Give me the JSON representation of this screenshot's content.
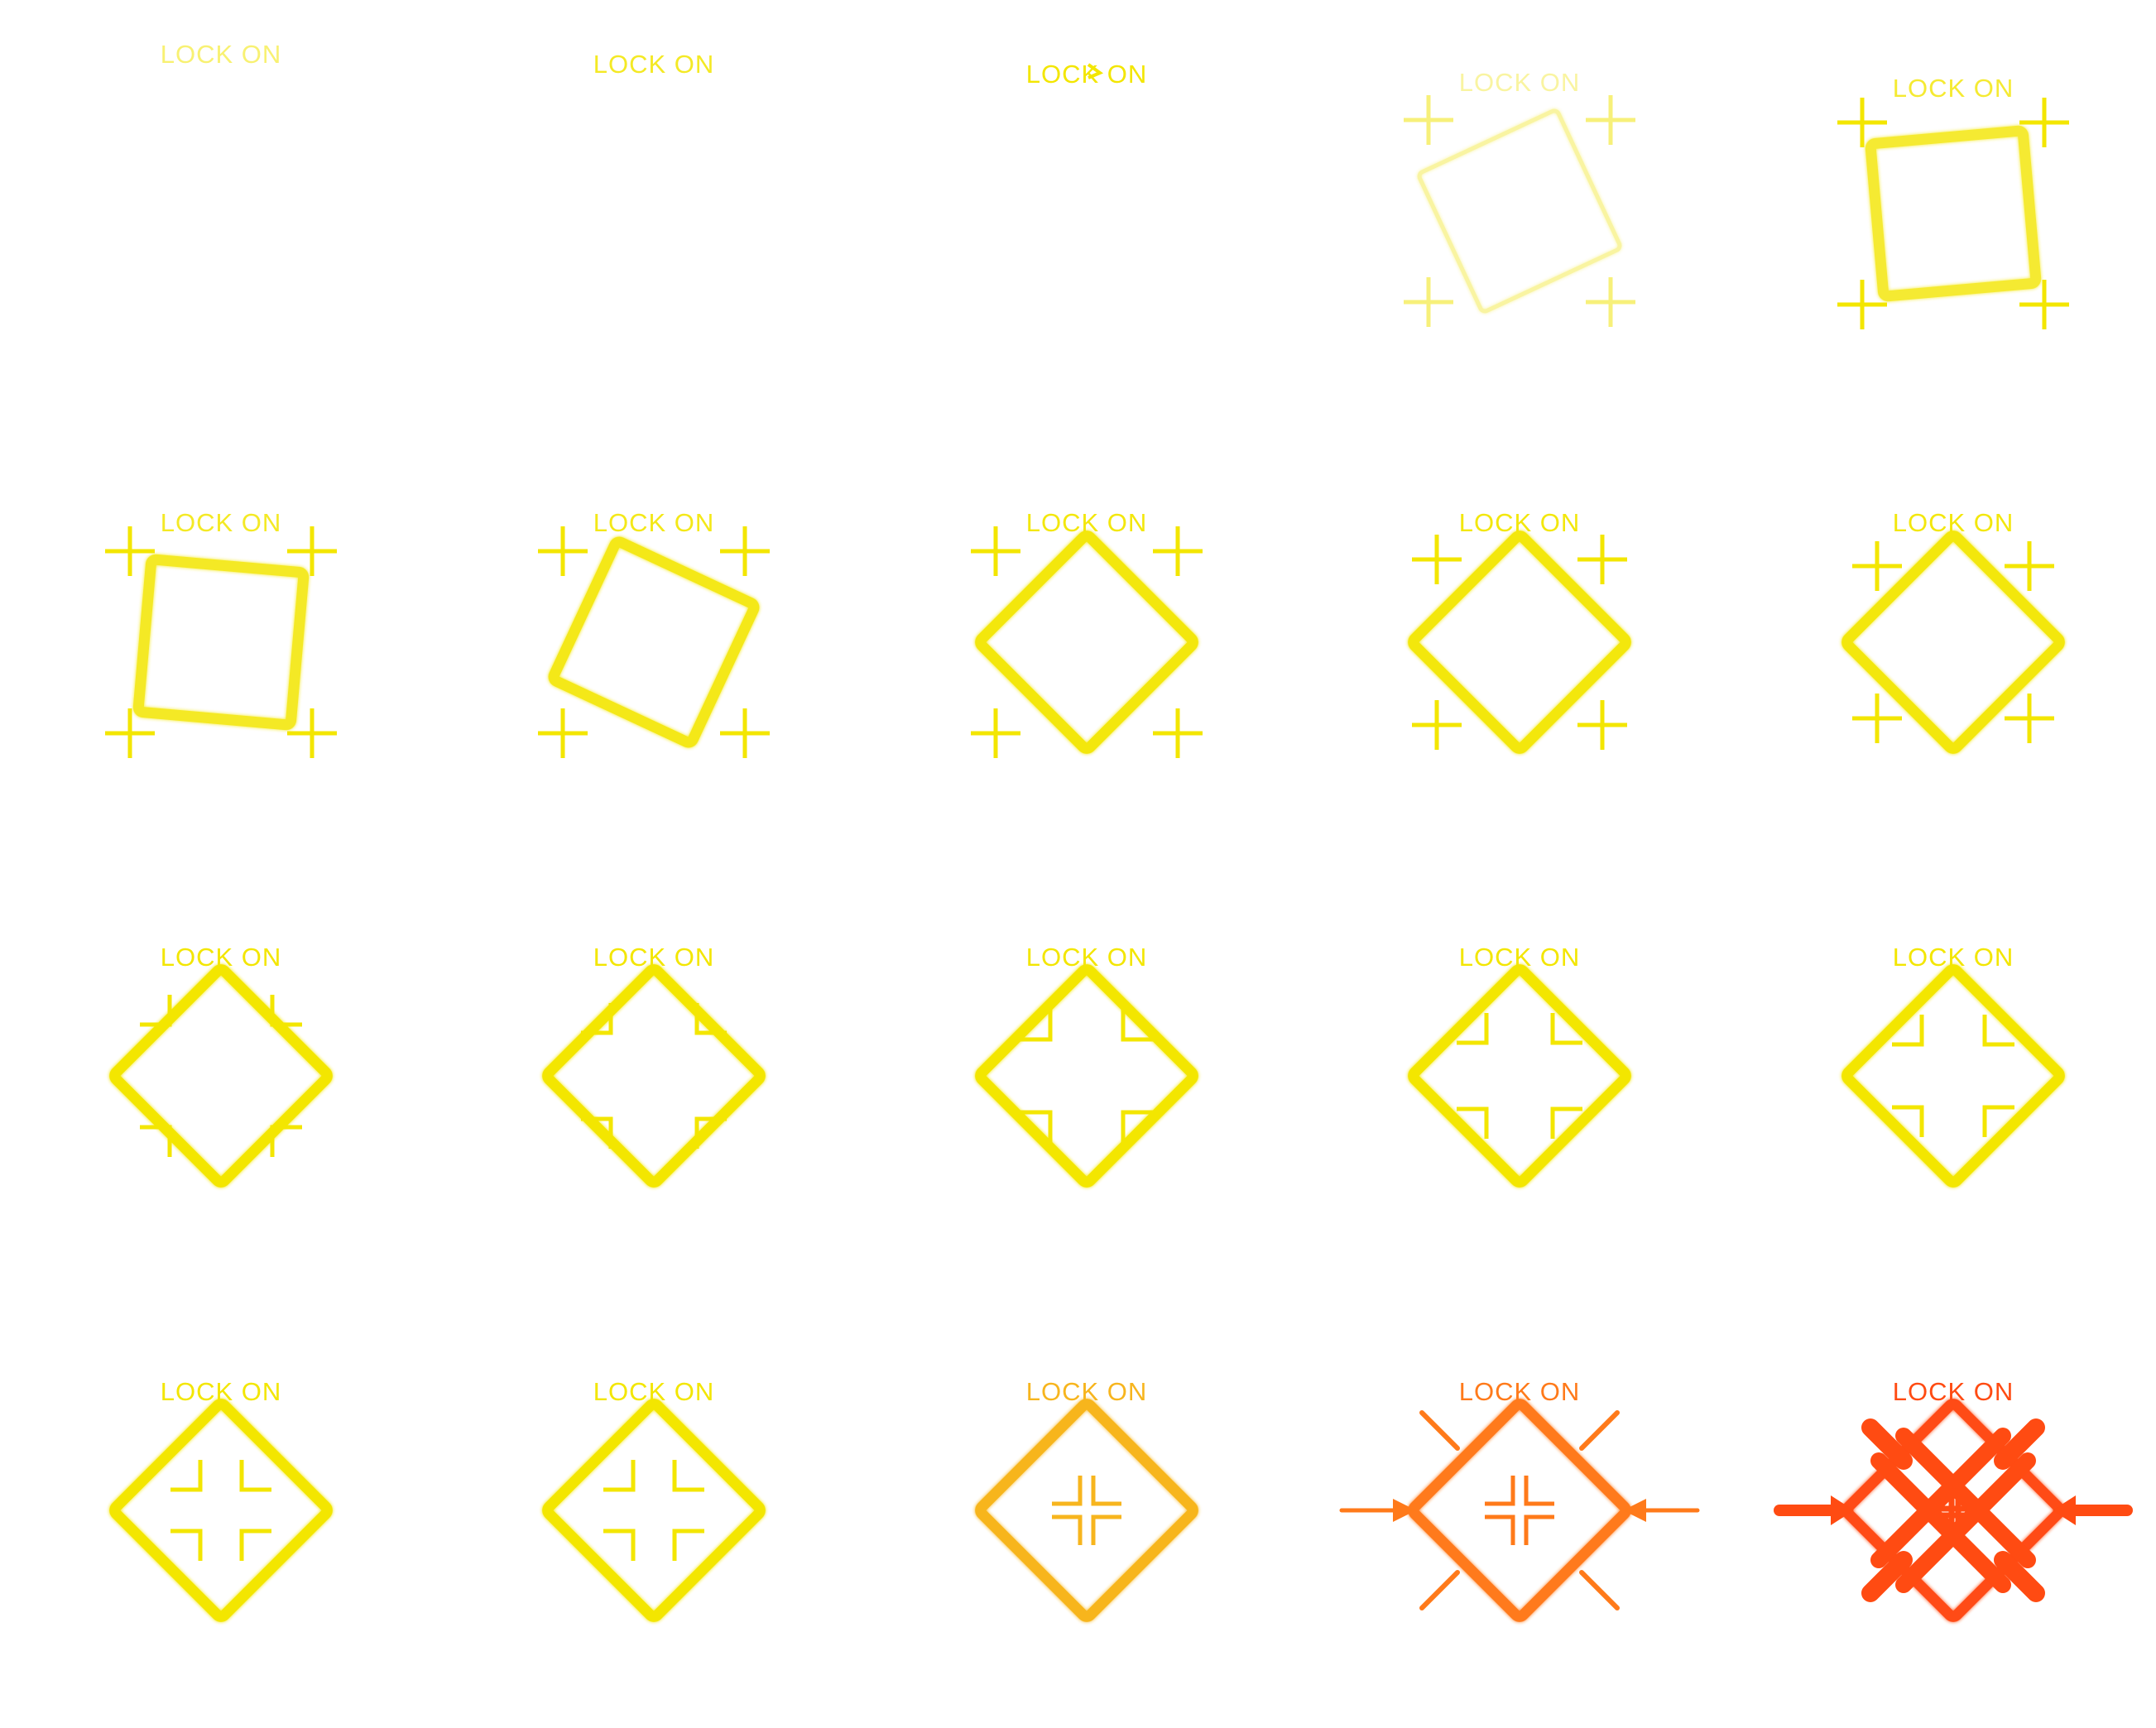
{
  "sprite_sheet": {
    "label_text": "LOCK ON",
    "columns": 5,
    "rows": 4,
    "frames": [
      {
        "index": 1,
        "stage": "label-only",
        "color": "#f3e600",
        "opacity": 0.55,
        "rotation_deg": 0,
        "corner_brackets": "none",
        "inner_marks": "none",
        "outer_effects": "none"
      },
      {
        "index": 2,
        "stage": "label-only",
        "color": "#f3e600",
        "opacity": 0.85,
        "rotation_deg": 0,
        "corner_brackets": "none",
        "inner_marks": "none",
        "outer_effects": "none"
      },
      {
        "index": 3,
        "stage": "label-only",
        "color": "#f3e600",
        "opacity": 1.0,
        "rotation_deg": 0,
        "corner_brackets": "none",
        "inner_marks": "none",
        "outer_effects": "none"
      },
      {
        "index": 4,
        "stage": "frame-fade-in",
        "color": "#f7f07a",
        "opacity": 0.7,
        "rotation_deg": -25,
        "corner_brackets": "outer",
        "inner_marks": "none",
        "outer_effects": "none"
      },
      {
        "index": 5,
        "stage": "frame-spin",
        "color": "#f3e600",
        "opacity": 0.8,
        "rotation_deg": -5,
        "corner_brackets": "outer",
        "inner_marks": "none",
        "outer_effects": "none"
      },
      {
        "index": 6,
        "stage": "frame-spin",
        "color": "#f3e600",
        "opacity": 0.85,
        "rotation_deg": 5,
        "corner_brackets": "outer",
        "inner_marks": "none",
        "outer_effects": "none"
      },
      {
        "index": 7,
        "stage": "frame-spin",
        "color": "#f3e600",
        "opacity": 0.9,
        "rotation_deg": 25,
        "corner_brackets": "outer",
        "inner_marks": "none",
        "outer_effects": "none"
      },
      {
        "index": 8,
        "stage": "frame-settle",
        "color": "#f3e600",
        "opacity": 0.95,
        "rotation_deg": 45,
        "corner_brackets": "outer",
        "inner_marks": "none",
        "outer_effects": "none"
      },
      {
        "index": 9,
        "stage": "frame-settle",
        "color": "#f3e600",
        "opacity": 0.95,
        "rotation_deg": 45,
        "corner_brackets": "near",
        "inner_marks": "none",
        "outer_effects": "none"
      },
      {
        "index": 10,
        "stage": "frame-settle",
        "color": "#f3e600",
        "opacity": 0.95,
        "rotation_deg": 45,
        "corner_brackets": "nearer",
        "inner_marks": "none",
        "outer_effects": "none"
      },
      {
        "index": 11,
        "stage": "brackets-in",
        "color": "#f3e600",
        "opacity": 1.0,
        "rotation_deg": 45,
        "corner_brackets": "edge",
        "inner_marks": "none",
        "outer_effects": "none"
      },
      {
        "index": 12,
        "stage": "brackets-in",
        "color": "#f3e600",
        "opacity": 1.0,
        "rotation_deg": 45,
        "corner_brackets": "inside",
        "inner_marks": "none",
        "outer_effects": "none"
      },
      {
        "index": 13,
        "stage": "brackets-in",
        "color": "#f3e600",
        "opacity": 1.0,
        "rotation_deg": 45,
        "corner_brackets": "inner",
        "inner_marks": "none",
        "outer_effects": "none"
      },
      {
        "index": 14,
        "stage": "brackets-in",
        "color": "#f3e600",
        "opacity": 1.0,
        "rotation_deg": 45,
        "corner_brackets": "inner2",
        "inner_marks": "none",
        "outer_effects": "none"
      },
      {
        "index": 15,
        "stage": "brackets-in",
        "color": "#f3e600",
        "opacity": 1.0,
        "rotation_deg": 45,
        "corner_brackets": "inner3",
        "inner_marks": "none",
        "outer_effects": "none"
      },
      {
        "index": 16,
        "stage": "brackets-center",
        "color": "#f3e600",
        "opacity": 1.0,
        "rotation_deg": 45,
        "corner_brackets": "center",
        "inner_marks": "none",
        "outer_effects": "none"
      },
      {
        "index": 17,
        "stage": "brackets-center",
        "color": "#f3e600",
        "opacity": 1.0,
        "rotation_deg": 45,
        "corner_brackets": "center2",
        "inner_marks": "none",
        "outer_effects": "none"
      },
      {
        "index": 18,
        "stage": "lock-amber",
        "color": "#f7b51e",
        "opacity": 1.0,
        "rotation_deg": 45,
        "corner_brackets": "cross",
        "inner_marks": "cross",
        "outer_effects": "none"
      },
      {
        "index": 19,
        "stage": "lock-orange",
        "color": "#ff7a1a",
        "opacity": 1.0,
        "rotation_deg": 45,
        "corner_brackets": "cross",
        "inner_marks": "cross",
        "outer_effects": "thin-arrows"
      },
      {
        "index": 20,
        "stage": "lock-red",
        "color": "#ff4b12",
        "opacity": 1.0,
        "rotation_deg": 45,
        "corner_brackets": "cross",
        "inner_marks": "plus",
        "outer_effects": "bold-arrows"
      }
    ]
  }
}
